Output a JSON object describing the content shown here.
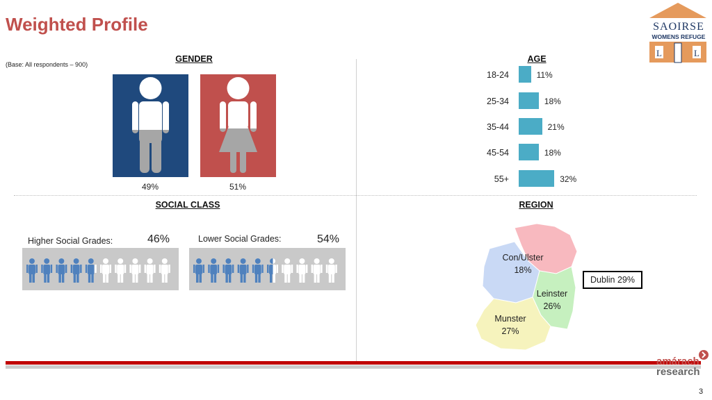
{
  "title": "Weighted Profile",
  "base_note": "(Base: All respondents – 900)",
  "logo": {
    "line1": "SAOIRSE",
    "line2": "WOMENS REFUGE"
  },
  "footer": {
    "brand_top": "amárach",
    "brand_bottom": "research",
    "page_number": "3"
  },
  "colors": {
    "title": "#c0504d",
    "male": "#1f497d",
    "female": "#c0504d",
    "age_bar": "#4bacc6",
    "people_fill": "#4f81bd",
    "rule": "#c00000"
  },
  "chart_data": [
    {
      "type": "bar",
      "title": "GENDER",
      "categories": [
        "Male",
        "Female"
      ],
      "values": [
        49,
        51
      ],
      "labels": [
        "49%",
        "51%"
      ]
    },
    {
      "type": "bar",
      "title": "AGE",
      "orientation": "horizontal",
      "categories": [
        "18-24",
        "25-34",
        "35-44",
        "45-54",
        "55+"
      ],
      "values": [
        11,
        18,
        21,
        18,
        32
      ],
      "labels": [
        "11%",
        "18%",
        "21%",
        "18%",
        "32%"
      ]
    },
    {
      "type": "bar",
      "title": "SOCIAL CLASS",
      "categories": [
        "Higher Social Grades:",
        "Lower Social Grades:"
      ],
      "values": [
        46,
        54
      ],
      "labels": [
        "46%",
        "54%"
      ]
    },
    {
      "type": "pie",
      "title": "REGION",
      "categories": [
        "Con/Ulster",
        "Leinster",
        "Munster",
        "Dublin"
      ],
      "values": [
        18,
        26,
        27,
        29
      ],
      "labels": [
        "18%",
        "26%",
        "27%",
        "Dublin 29%"
      ]
    }
  ]
}
